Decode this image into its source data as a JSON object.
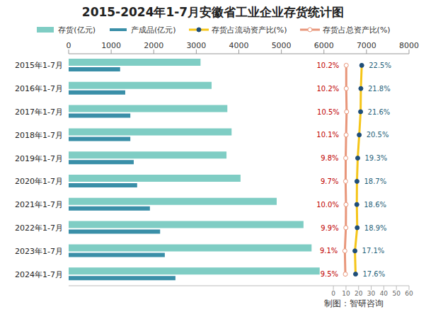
{
  "chart_data": {
    "type": "bar",
    "orientation": "horizontal",
    "title": "2015-2024年1-7月安徽省工业企业存货统计图",
    "source": "制图：智研咨询",
    "categories": [
      "2015年1-7月",
      "2016年1-7月",
      "2017年1-7月",
      "2018年1-7月",
      "2019年1-7月",
      "2020年1-7月",
      "2021年1-7月",
      "2022年1-7月",
      "2023年1-7月",
      "2024年1-7月"
    ],
    "xlim": [
      0,
      8000
    ],
    "xticks": [
      0,
      1000,
      2000,
      3000,
      4000,
      5000,
      6000,
      7000,
      8000
    ],
    "y2lim": [
      -210,
      60
    ],
    "y2ticks": [
      0,
      10,
      20,
      30,
      40,
      50,
      60
    ],
    "grid": false,
    "legend": "top",
    "series": [
      {
        "name": "存货(亿元)",
        "type": "bar",
        "color": "#7fcdc4",
        "values": [
          3100,
          3360,
          3730,
          3830,
          3710,
          4040,
          4890,
          5520,
          5710,
          5900
        ]
      },
      {
        "name": "产成品(亿元)",
        "type": "bar",
        "color": "#3a8fa8",
        "values": [
          1210,
          1330,
          1450,
          1450,
          1530,
          1610,
          1910,
          2150,
          2260,
          2510
        ]
      },
      {
        "name": "存货占流动资产比(%)",
        "type": "line",
        "axis": "y2",
        "color": "#f5c518",
        "marker": "circle",
        "data_labels": true,
        "values": [
          22.5,
          21.8,
          21.6,
          20.5,
          19.3,
          18.7,
          18.6,
          18.9,
          17.1,
          17.6
        ],
        "value_labels": [
          "22.5%",
          "21.8%",
          "21.6%",
          "20.5%",
          "19.3%",
          "18.7%",
          "18.6%",
          "18.9%",
          "17.1%",
          "17.6%"
        ]
      },
      {
        "name": "存货占总资产比(%)",
        "type": "line",
        "axis": "y2",
        "color": "#e8967a",
        "marker": "circle",
        "data_labels": true,
        "values": [
          10.2,
          10.2,
          10.5,
          10.1,
          9.8,
          9.7,
          10.0,
          9.9,
          9.1,
          9.5
        ],
        "value_labels": [
          "10.2%",
          "10.2%",
          "10.5%",
          "10.1%",
          "9.8%",
          "9.7%",
          "10.0%",
          "9.9%",
          "9.1%",
          "9.5%"
        ]
      }
    ]
  }
}
